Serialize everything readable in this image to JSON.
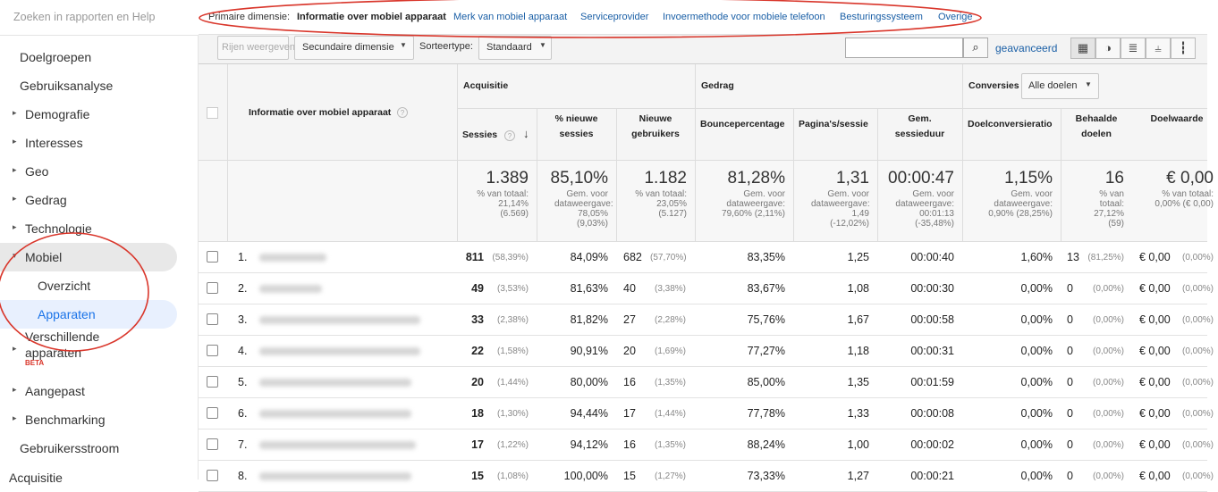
{
  "sidebar": {
    "search": "Zoeken in rapporten en Help",
    "items": [
      "Doelgroepen",
      "Gebruiksanalyse",
      "Demografie",
      "Interesses",
      "Geo",
      "Gedrag",
      "Technologie",
      "Mobiel",
      "Overzicht",
      "Apparaten",
      "Verschillende apparaten",
      "Aangepast",
      "Benchmarking",
      "Gebruikersstroom",
      "Acquisitie"
    ],
    "beta": "BETA"
  },
  "primary_dimension": {
    "label": "Primaire dimensie:",
    "options": [
      "Informatie over mobiel apparaat",
      "Merk van mobiel apparaat",
      "Serviceprovider",
      "Invoermethode voor mobiele telefoon",
      "Besturingssysteem",
      "Overige"
    ],
    "active": 0
  },
  "toolbar": {
    "rows": "Rijen weergeven",
    "secondary": "Secundaire dimensie",
    "sort_label": "Sorteertype:",
    "sort": "Standaard",
    "advanced": "geavanceerd"
  },
  "table": {
    "dimension_header": "Informatie over mobiel apparaat",
    "groups": [
      "Acquisitie",
      "Gedrag",
      "Conversies"
    ],
    "goal_select": "Alle doelen",
    "columns": [
      "Sessies",
      "% nieuwe sessies",
      "Nieuwe gebruikers",
      "Bouncepercentage",
      "Pagina's/sessie",
      "Gem. sessieduur",
      "Doelconversieratio",
      "Behaalde doelen",
      "Doelwaarde"
    ],
    "totals": [
      {
        "value": "1.389",
        "note": "% van totaal: 21,14% (6.569)"
      },
      {
        "value": "85,10%",
        "note": "Gem. voor dataweergave: 78,05% (9,03%)"
      },
      {
        "value": "1.182",
        "note": "% van totaal: 23,05% (5.127)"
      },
      {
        "value": "81,28%",
        "note": "Gem. voor dataweergave: 79,60% (2,11%)"
      },
      {
        "value": "1,31",
        "note": "Gem. voor dataweergave: 1,49 (-12,02%)"
      },
      {
        "value": "00:00:47",
        "note": "Gem. voor dataweergave: 00:01:13 (-35,48%)"
      },
      {
        "value": "1,15%",
        "note": "Gem. voor dataweergave: 0,90% (28,25%)"
      },
      {
        "value": "16",
        "note": "% van totaal: 27,12% (59)"
      },
      {
        "value": "€ 0,00",
        "note": "% van totaal: 0,00% (€ 0,00)"
      }
    ],
    "rows": [
      [
        "1.",
        "811",
        "(58,39%)",
        "84,09%",
        "682",
        "(57,70%)",
        "83,35%",
        "1,25",
        "00:00:40",
        "1,60%",
        "13",
        "(81,25%)",
        "€ 0,00",
        "(0,00%)"
      ],
      [
        "2.",
        "49",
        "(3,53%)",
        "81,63%",
        "40",
        "(3,38%)",
        "83,67%",
        "1,08",
        "00:00:30",
        "0,00%",
        "0",
        "(0,00%)",
        "€ 0,00",
        "(0,00%)"
      ],
      [
        "3.",
        "33",
        "(2,38%)",
        "81,82%",
        "27",
        "(2,28%)",
        "75,76%",
        "1,67",
        "00:00:58",
        "0,00%",
        "0",
        "(0,00%)",
        "€ 0,00",
        "(0,00%)"
      ],
      [
        "4.",
        "22",
        "(1,58%)",
        "90,91%",
        "20",
        "(1,69%)",
        "77,27%",
        "1,18",
        "00:00:31",
        "0,00%",
        "0",
        "(0,00%)",
        "€ 0,00",
        "(0,00%)"
      ],
      [
        "5.",
        "20",
        "(1,44%)",
        "80,00%",
        "16",
        "(1,35%)",
        "85,00%",
        "1,35",
        "00:01:59",
        "0,00%",
        "0",
        "(0,00%)",
        "€ 0,00",
        "(0,00%)"
      ],
      [
        "6.",
        "18",
        "(1,30%)",
        "94,44%",
        "17",
        "(1,44%)",
        "77,78%",
        "1,33",
        "00:00:08",
        "0,00%",
        "0",
        "(0,00%)",
        "€ 0,00",
        "(0,00%)"
      ],
      [
        "7.",
        "17",
        "(1,22%)",
        "94,12%",
        "16",
        "(1,35%)",
        "88,24%",
        "1,00",
        "00:00:02",
        "0,00%",
        "0",
        "(0,00%)",
        "€ 0,00",
        "(0,00%)"
      ],
      [
        "8.",
        "15",
        "(1,08%)",
        "100,00%",
        "15",
        "(1,27%)",
        "73,33%",
        "1,27",
        "00:00:21",
        "0,00%",
        "0",
        "(0,00%)",
        "€ 0,00",
        "(0,00%)"
      ]
    ]
  }
}
